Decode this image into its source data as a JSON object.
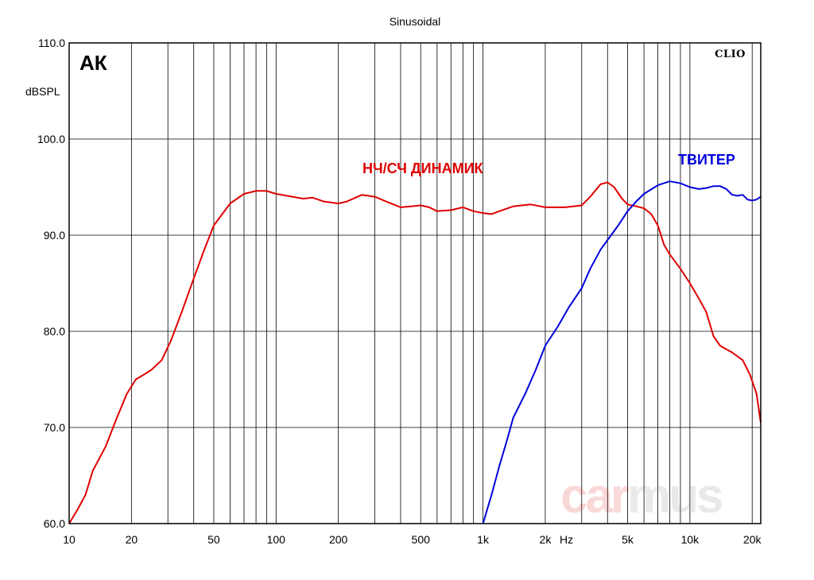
{
  "chart_data": {
    "type": "line",
    "title": "Sinusoidal",
    "ylabel": "dBSPL",
    "xlabel": "Hz",
    "panel_label": "АК",
    "brand": "CLIO",
    "watermark": {
      "part1": "car",
      "part2": "mus"
    },
    "x_scale": "log",
    "xlim": [
      10,
      22000
    ],
    "ylim": [
      60,
      110
    ],
    "grid": true,
    "y_ticks": [
      {
        "value": 60,
        "label": "60.0"
      },
      {
        "value": 70,
        "label": "70.0"
      },
      {
        "value": 80,
        "label": "80.0"
      },
      {
        "value": 90,
        "label": "90.0"
      },
      {
        "value": 100,
        "label": "100.0"
      },
      {
        "value": 110,
        "label": "110.0"
      }
    ],
    "x_ticks": [
      {
        "value": 10,
        "label": "10"
      },
      {
        "value": 20,
        "label": "20"
      },
      {
        "value": 50,
        "label": "50"
      },
      {
        "value": 100,
        "label": "100"
      },
      {
        "value": 200,
        "label": "200"
      },
      {
        "value": 500,
        "label": "500"
      },
      {
        "value": 1000,
        "label": "1k"
      },
      {
        "value": 2000,
        "label": "2k"
      },
      {
        "value": 5000,
        "label": "5k"
      },
      {
        "value": 10000,
        "label": "10k"
      },
      {
        "value": 20000,
        "label": "20k"
      }
    ],
    "series": [
      {
        "name": "НЧ/СЧ ДИНАМИК",
        "color": "#e00000",
        "points": [
          [
            10,
            60
          ],
          [
            11,
            61.5
          ],
          [
            12,
            63
          ],
          [
            13,
            65.5
          ],
          [
            15,
            68
          ],
          [
            17,
            71
          ],
          [
            19,
            73.5
          ],
          [
            21,
            75
          ],
          [
            23,
            75.5
          ],
          [
            25,
            76
          ],
          [
            28,
            77
          ],
          [
            31,
            79
          ],
          [
            35,
            82
          ],
          [
            40,
            85.5
          ],
          [
            45,
            88.5
          ],
          [
            50,
            91
          ],
          [
            60,
            93.3
          ],
          [
            70,
            94.3
          ],
          [
            80,
            94.6
          ],
          [
            90,
            94.6
          ],
          [
            100,
            94.3
          ],
          [
            120,
            94
          ],
          [
            135,
            93.8
          ],
          [
            150,
            93.9
          ],
          [
            170,
            93.5
          ],
          [
            200,
            93.3
          ],
          [
            220,
            93.5
          ],
          [
            260,
            94.2
          ],
          [
            300,
            94
          ],
          [
            350,
            93.4
          ],
          [
            400,
            92.9
          ],
          [
            450,
            93
          ],
          [
            500,
            93.1
          ],
          [
            550,
            92.9
          ],
          [
            600,
            92.5
          ],
          [
            700,
            92.6
          ],
          [
            800,
            92.9
          ],
          [
            900,
            92.5
          ],
          [
            1000,
            92.3
          ],
          [
            1100,
            92.2
          ],
          [
            1200,
            92.5
          ],
          [
            1400,
            93
          ],
          [
            1700,
            93.2
          ],
          [
            2000,
            92.9
          ],
          [
            2500,
            92.9
          ],
          [
            3000,
            93.1
          ],
          [
            3300,
            94
          ],
          [
            3700,
            95.3
          ],
          [
            4000,
            95.5
          ],
          [
            4300,
            95
          ],
          [
            4700,
            93.8
          ],
          [
            5000,
            93.2
          ],
          [
            5500,
            93
          ],
          [
            6000,
            92.8
          ],
          [
            6500,
            92.2
          ],
          [
            7000,
            91
          ],
          [
            7500,
            89
          ],
          [
            8000,
            88
          ],
          [
            9000,
            86.5
          ],
          [
            10000,
            85
          ],
          [
            11000,
            83.5
          ],
          [
            12000,
            82
          ],
          [
            13000,
            79.5
          ],
          [
            14000,
            78.5
          ],
          [
            16000,
            77.8
          ],
          [
            18000,
            77
          ],
          [
            19500,
            75.5
          ],
          [
            21000,
            73.5
          ],
          [
            22000,
            70.5
          ]
        ]
      },
      {
        "name": "ТВИТЕР",
        "color": "#0000dd",
        "points": [
          [
            1000,
            60
          ],
          [
            1100,
            63
          ],
          [
            1200,
            66
          ],
          [
            1300,
            68.5
          ],
          [
            1400,
            71
          ],
          [
            1600,
            73.5
          ],
          [
            1800,
            76
          ],
          [
            2000,
            78.5
          ],
          [
            2300,
            80.5
          ],
          [
            2600,
            82.5
          ],
          [
            3000,
            84.5
          ],
          [
            3300,
            86.5
          ],
          [
            3700,
            88.5
          ],
          [
            4000,
            89.5
          ],
          [
            4500,
            91
          ],
          [
            5000,
            92.5
          ],
          [
            5500,
            93.5
          ],
          [
            6000,
            94.3
          ],
          [
            7000,
            95.2
          ],
          [
            8000,
            95.6
          ],
          [
            9000,
            95.4
          ],
          [
            10000,
            95
          ],
          [
            11000,
            94.8
          ],
          [
            12000,
            94.9
          ],
          [
            13000,
            95.1
          ],
          [
            14000,
            95.1
          ],
          [
            15000,
            94.8
          ],
          [
            16000,
            94.2
          ],
          [
            17000,
            94.1
          ],
          [
            18000,
            94.2
          ],
          [
            19000,
            93.7
          ],
          [
            20000,
            93.6
          ],
          [
            21000,
            93.7
          ],
          [
            22000,
            94
          ]
        ]
      }
    ]
  }
}
